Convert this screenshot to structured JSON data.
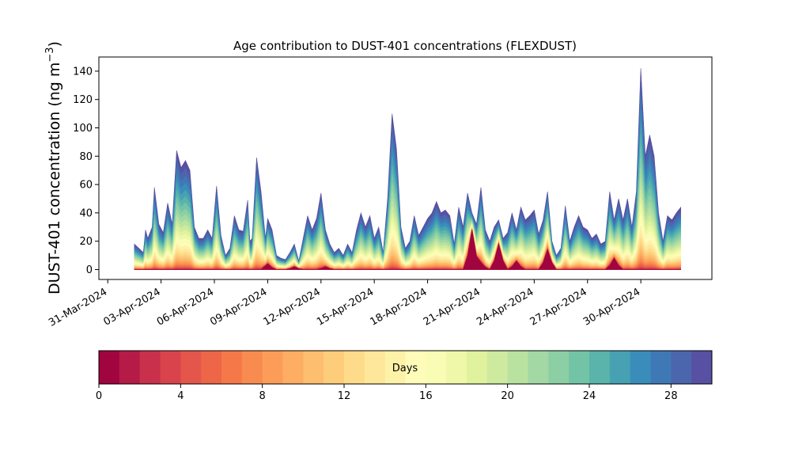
{
  "chart_data": {
    "type": "area",
    "title": "Age contribution to DUST-401 concentrations (FLEXDUST)",
    "ylabel": "DUST-401 concentration (ng m",
    "ylabel_sup": "−3",
    "ylabel_close": ")",
    "ylim": [
      -7,
      150
    ],
    "yticks": [
      0,
      20,
      40,
      60,
      80,
      100,
      120,
      140
    ],
    "xlim": [
      "2024-03-30T12:00",
      "2024-05-04T00:00"
    ],
    "xticks": [
      {
        "date": "2024-03-31",
        "label": "31-Mar-2024"
      },
      {
        "date": "2024-04-03",
        "label": "03-Apr-2024"
      },
      {
        "date": "2024-04-06",
        "label": "06-Apr-2024"
      },
      {
        "date": "2024-04-09",
        "label": "09-Apr-2024"
      },
      {
        "date": "2024-04-12",
        "label": "12-Apr-2024"
      },
      {
        "date": "2024-04-15",
        "label": "15-Apr-2024"
      },
      {
        "date": "2024-04-18",
        "label": "18-Apr-2024"
      },
      {
        "date": "2024-04-21",
        "label": "21-Apr-2024"
      },
      {
        "date": "2024-04-24",
        "label": "24-Apr-2024"
      },
      {
        "date": "2024-04-27",
        "label": "27-Apr-2024"
      },
      {
        "date": "2024-04-30",
        "label": "30-Apr-2024"
      }
    ],
    "grid": false,
    "stack_layers_days": 30,
    "total": [
      [
        "2024-04-01T12:00",
        18
      ],
      [
        "2024-04-01T18:00",
        15
      ],
      [
        "2024-04-02T00:00",
        12
      ],
      [
        "2024-04-02T03:00",
        28
      ],
      [
        "2024-04-02T06:00",
        22
      ],
      [
        "2024-04-02T12:00",
        30
      ],
      [
        "2024-04-02T15:00",
        58
      ],
      [
        "2024-04-02T21:00",
        32
      ],
      [
        "2024-04-03T03:00",
        26
      ],
      [
        "2024-04-03T09:00",
        47
      ],
      [
        "2024-04-03T15:00",
        32
      ],
      [
        "2024-04-03T21:00",
        84
      ],
      [
        "2024-04-04T03:00",
        72
      ],
      [
        "2024-04-04T09:00",
        77
      ],
      [
        "2024-04-04T15:00",
        70
      ],
      [
        "2024-04-04T21:00",
        30
      ],
      [
        "2024-04-05T03:00",
        22
      ],
      [
        "2024-04-05T09:00",
        22
      ],
      [
        "2024-04-05T15:00",
        28
      ],
      [
        "2024-04-05T21:00",
        22
      ],
      [
        "2024-04-06T03:00",
        59
      ],
      [
        "2024-04-06T09:00",
        24
      ],
      [
        "2024-04-06T15:00",
        10
      ],
      [
        "2024-04-06T21:00",
        15
      ],
      [
        "2024-04-07T03:00",
        38
      ],
      [
        "2024-04-07T09:00",
        28
      ],
      [
        "2024-04-07T15:00",
        27
      ],
      [
        "2024-04-07T21:00",
        49
      ],
      [
        "2024-04-08T00:00",
        20
      ],
      [
        "2024-04-08T03:00",
        22
      ],
      [
        "2024-04-08T09:00",
        79
      ],
      [
        "2024-04-08T15:00",
        55
      ],
      [
        "2024-04-08T21:00",
        22
      ],
      [
        "2024-04-09T00:00",
        36
      ],
      [
        "2024-04-09T06:00",
        28
      ],
      [
        "2024-04-09T12:00",
        10
      ],
      [
        "2024-04-09T18:00",
        8
      ],
      [
        "2024-04-10T00:00",
        7
      ],
      [
        "2024-04-10T06:00",
        12
      ],
      [
        "2024-04-10T12:00",
        18
      ],
      [
        "2024-04-10T18:00",
        6
      ],
      [
        "2024-04-11T00:00",
        22
      ],
      [
        "2024-04-11T06:00",
        38
      ],
      [
        "2024-04-11T12:00",
        28
      ],
      [
        "2024-04-11T18:00",
        36
      ],
      [
        "2024-04-12T00:00",
        54
      ],
      [
        "2024-04-12T06:00",
        28
      ],
      [
        "2024-04-12T12:00",
        18
      ],
      [
        "2024-04-12T18:00",
        12
      ],
      [
        "2024-04-13T00:00",
        15
      ],
      [
        "2024-04-13T06:00",
        10
      ],
      [
        "2024-04-13T12:00",
        18
      ],
      [
        "2024-04-13T18:00",
        12
      ],
      [
        "2024-04-14T00:00",
        28
      ],
      [
        "2024-04-14T06:00",
        40
      ],
      [
        "2024-04-14T12:00",
        30
      ],
      [
        "2024-04-14T18:00",
        38
      ],
      [
        "2024-04-15T00:00",
        22
      ],
      [
        "2024-04-15T06:00",
        30
      ],
      [
        "2024-04-15T12:00",
        12
      ],
      [
        "2024-04-15T18:00",
        50
      ],
      [
        "2024-04-16T00:00",
        110
      ],
      [
        "2024-04-16T06:00",
        85
      ],
      [
        "2024-04-16T12:00",
        30
      ],
      [
        "2024-04-16T18:00",
        15
      ],
      [
        "2024-04-17T00:00",
        20
      ],
      [
        "2024-04-17T06:00",
        38
      ],
      [
        "2024-04-17T12:00",
        24
      ],
      [
        "2024-04-17T18:00",
        30
      ],
      [
        "2024-04-18T00:00",
        36
      ],
      [
        "2024-04-18T06:00",
        40
      ],
      [
        "2024-04-18T12:00",
        48
      ],
      [
        "2024-04-18T18:00",
        40
      ],
      [
        "2024-04-19T00:00",
        42
      ],
      [
        "2024-04-19T06:00",
        38
      ],
      [
        "2024-04-19T12:00",
        18
      ],
      [
        "2024-04-19T18:00",
        44
      ],
      [
        "2024-04-20T00:00",
        30
      ],
      [
        "2024-04-20T06:00",
        54
      ],
      [
        "2024-04-20T12:00",
        40
      ],
      [
        "2024-04-20T18:00",
        32
      ],
      [
        "2024-04-21T00:00",
        58
      ],
      [
        "2024-04-21T06:00",
        28
      ],
      [
        "2024-04-21T12:00",
        20
      ],
      [
        "2024-04-21T18:00",
        30
      ],
      [
        "2024-04-22T00:00",
        35
      ],
      [
        "2024-04-22T06:00",
        22
      ],
      [
        "2024-04-22T12:00",
        26
      ],
      [
        "2024-04-22T18:00",
        40
      ],
      [
        "2024-04-23T00:00",
        28
      ],
      [
        "2024-04-23T06:00",
        44
      ],
      [
        "2024-04-23T12:00",
        35
      ],
      [
        "2024-04-23T18:00",
        38
      ],
      [
        "2024-04-24T00:00",
        42
      ],
      [
        "2024-04-24T06:00",
        25
      ],
      [
        "2024-04-24T12:00",
        35
      ],
      [
        "2024-04-24T18:00",
        55
      ],
      [
        "2024-04-25T00:00",
        20
      ],
      [
        "2024-04-25T06:00",
        10
      ],
      [
        "2024-04-25T12:00",
        15
      ],
      [
        "2024-04-25T18:00",
        45
      ],
      [
        "2024-04-26T00:00",
        20
      ],
      [
        "2024-04-26T06:00",
        30
      ],
      [
        "2024-04-26T12:00",
        38
      ],
      [
        "2024-04-26T18:00",
        30
      ],
      [
        "2024-04-27T00:00",
        28
      ],
      [
        "2024-04-27T06:00",
        22
      ],
      [
        "2024-04-27T12:00",
        25
      ],
      [
        "2024-04-27T18:00",
        18
      ],
      [
        "2024-04-28T00:00",
        20
      ],
      [
        "2024-04-28T06:00",
        55
      ],
      [
        "2024-04-28T12:00",
        35
      ],
      [
        "2024-04-28T18:00",
        50
      ],
      [
        "2024-04-29T00:00",
        35
      ],
      [
        "2024-04-29T06:00",
        50
      ],
      [
        "2024-04-29T12:00",
        30
      ],
      [
        "2024-04-29T18:00",
        55
      ],
      [
        "2024-04-30T00:00",
        142
      ],
      [
        "2024-04-30T06:00",
        80
      ],
      [
        "2024-04-30T12:00",
        95
      ],
      [
        "2024-04-30T18:00",
        80
      ],
      [
        "2024-05-01T00:00",
        40
      ],
      [
        "2024-05-01T06:00",
        20
      ],
      [
        "2024-05-01T12:00",
        38
      ],
      [
        "2024-05-01T18:00",
        35
      ],
      [
        "2024-05-02T00:00",
        40
      ],
      [
        "2024-05-02T06:00",
        44
      ]
    ],
    "young_age_bumps": [
      [
        "2024-04-09T00:00",
        4
      ],
      [
        "2024-04-10T12:00",
        2
      ],
      [
        "2024-04-12T06:00",
        2
      ],
      [
        "2024-04-20T12:00",
        28
      ],
      [
        "2024-04-21T00:00",
        5
      ],
      [
        "2024-04-22T00:00",
        18
      ],
      [
        "2024-04-23T00:00",
        6
      ],
      [
        "2024-04-24T18:00",
        14
      ],
      [
        "2024-04-28T12:00",
        8
      ]
    ],
    "colorbar": {
      "label": "Days",
      "min": 0,
      "max": 30,
      "ticks": [
        0,
        4,
        8,
        12,
        16,
        20,
        24,
        28
      ],
      "colors": [
        "#a0053f",
        "#b41b46",
        "#c8304c",
        "#d8434c",
        "#e4564b",
        "#ed6648",
        "#f57948",
        "#f88c50",
        "#fb9d59",
        "#fdae62",
        "#fdbe6f",
        "#fdcd7c",
        "#fedb8a",
        "#fee79a",
        "#fef1a8",
        "#fffbb8",
        "#f8fcb5",
        "#eef8a8",
        "#e0f29d",
        "#cdea9e",
        "#b9e2a0",
        "#a3d8a4",
        "#8ccfa4",
        "#73c4a7",
        "#5ab4ab",
        "#47a1b2",
        "#3a8dba",
        "#3f79b5",
        "#4b66ad",
        "#5850a2"
      ]
    }
  }
}
